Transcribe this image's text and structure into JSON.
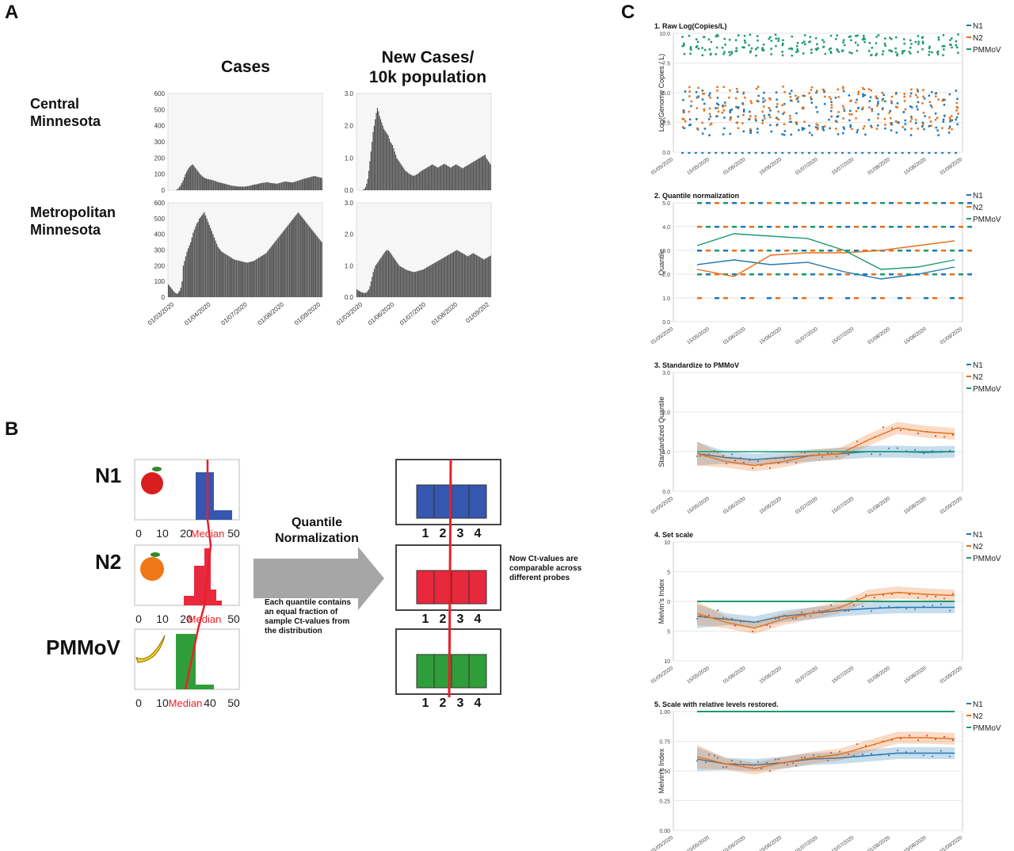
{
  "panels": {
    "a": "A",
    "b": "B",
    "c": "C"
  },
  "panel_a": {
    "col_headers": [
      "Cases",
      "New Cases/\n10k population"
    ],
    "row_labels": [
      "Central\nMinnesota",
      "Metropolitan\nMinnesota"
    ],
    "x_ticks": [
      "01/03/2020",
      "01/04/2020",
      "01/07/2020",
      "01/08/2020",
      "01/09/2020"
    ],
    "x_ticks_right": [
      "01/03/2020",
      "01/06/2020",
      "01/07/2020",
      "01/08/2020",
      "01/09/202"
    ]
  },
  "panel_b": {
    "names": [
      "N1",
      "N2",
      "PMMoV"
    ],
    "name_colors": [
      "#1f6fbf",
      "#e8202a",
      "#2eaa4a"
    ],
    "icons": [
      "apple-icon",
      "orange-icon",
      "banana-icon"
    ],
    "x_ticks": [
      [
        "0",
        "10",
        "20",
        "",
        "50"
      ],
      [
        "0",
        "10",
        "20",
        "",
        "50"
      ],
      [
        "0",
        "10",
        "",
        "40",
        "50"
      ]
    ],
    "median_label": "Median",
    "arrow_title": "Quantile\nNormalization",
    "arrow_caption": "Each quantile contains\nan equal fraction of\nsample Ct-values from\nthe distribution",
    "result_caption": "Now Ct-values are\ncomparable across\ndifferent probes",
    "quantile_labels": [
      "1",
      "2",
      "3",
      "4"
    ],
    "box_colors": [
      "#3557b0",
      "#e8283c",
      "#2f9e3a"
    ]
  },
  "panel_c": {
    "legend": [
      "N1",
      "N2",
      "PMMoV"
    ],
    "series_colors": {
      "N1": "#1f77b4",
      "N2": "#e8701a",
      "PMMoV": "#1a9a6c"
    },
    "dates": [
      "01/05/2020",
      "15/05/2020",
      "01/06/2020",
      "15/06/2020",
      "01/07/2020",
      "15/07/2020",
      "01/08/2020",
      "15/08/2020",
      "01/09/2020"
    ],
    "subplots": [
      {
        "title": "1. Raw Log(Copies/L)",
        "ylabel": "Log(Genome Copies / L)",
        "yticks": [
          "0.0",
          "2.5",
          "5.0",
          "7.5",
          "10.0"
        ]
      },
      {
        "title": "2. Quantile normalization",
        "ylabel": "Quantile",
        "yticks": [
          "0.0",
          "1.0",
          "2.0",
          "3.0",
          "4.0",
          "5.0"
        ]
      },
      {
        "title": "3. Standardize to PMMoV",
        "ylabel": "Standardized Quantile",
        "yticks": [
          "0.0",
          "1.0",
          "2.0",
          "3.0"
        ]
      },
      {
        "title": "4. Set scale",
        "ylabel": "Melvin's Index",
        "yticks": [
          "10",
          "5",
          "0",
          "5",
          "10"
        ]
      },
      {
        "title": "5. Scale with relative levels restored.",
        "ylabel": "Melvin's Index",
        "yticks": [
          "0.00",
          "0.25",
          "0.50",
          "0.75",
          "1.00"
        ]
      }
    ]
  },
  "chart_data": [
    {
      "type": "bar",
      "title": "Cases",
      "subtitle": "Central Minnesota",
      "ylim": [
        0,
        600
      ],
      "yticks": [
        0,
        100,
        200,
        300,
        400,
        500,
        600
      ],
      "values": [
        0,
        0,
        0,
        0,
        0,
        0,
        0,
        5,
        10,
        20,
        30,
        45,
        60,
        80,
        100,
        115,
        130,
        140,
        150,
        155,
        160,
        150,
        140,
        130,
        120,
        110,
        100,
        92,
        85,
        80,
        75,
        72,
        70,
        68,
        66,
        65,
        63,
        60,
        58,
        55,
        52,
        50,
        48,
        46,
        44,
        42,
        40,
        38,
        36,
        34,
        32,
        30,
        28,
        27,
        26,
        25,
        24,
        23,
        22,
        22,
        22,
        22,
        22,
        23,
        24,
        25,
        26,
        28,
        30,
        32,
        34,
        35,
        36,
        38,
        40,
        42,
        44,
        45,
        46,
        47,
        48,
        50,
        48,
        46,
        45,
        44,
        43,
        42,
        41,
        40,
        42,
        44,
        46,
        48,
        50,
        52,
        54,
        53,
        52,
        51,
        50,
        49,
        48,
        50,
        52,
        55,
        58,
        60,
        62,
        65,
        68,
        70,
        72,
        74,
        76,
        78,
        80,
        82,
        84,
        86,
        88,
        86,
        84,
        82,
        80,
        78,
        76
      ]
    },
    {
      "type": "bar",
      "title": "New Cases/ 10k population",
      "subtitle": "Central Minnesota",
      "ylim": [
        0,
        3.0
      ],
      "yticks": [
        0.0,
        1.0,
        2.0,
        3.0
      ],
      "values": [
        0,
        0,
        0,
        0,
        0,
        0,
        0.02,
        0.05,
        0.1,
        0.2,
        0.35,
        0.6,
        0.9,
        1.2,
        1.5,
        1.8,
        2.0,
        2.2,
        2.4,
        2.55,
        2.45,
        2.3,
        2.2,
        2.1,
        2.0,
        1.9,
        1.85,
        1.8,
        1.75,
        1.7,
        1.6,
        1.5,
        1.45,
        1.4,
        1.3,
        1.2,
        1.1,
        1.0,
        0.95,
        0.9,
        0.85,
        0.8,
        0.75,
        0.7,
        0.65,
        0.6,
        0.58,
        0.55,
        0.52,
        0.5,
        0.48,
        0.46,
        0.45,
        0.45,
        0.46,
        0.48,
        0.5,
        0.52,
        0.55,
        0.58,
        0.6,
        0.62,
        0.64,
        0.66,
        0.68,
        0.7,
        0.72,
        0.74,
        0.76,
        0.78,
        0.8,
        0.78,
        0.76,
        0.74,
        0.72,
        0.7,
        0.72,
        0.74,
        0.76,
        0.78,
        0.8,
        0.82,
        0.8,
        0.78,
        0.76,
        0.74,
        0.72,
        0.7,
        0.72,
        0.74,
        0.76,
        0.78,
        0.8,
        0.78,
        0.76,
        0.74,
        0.72,
        0.7,
        0.68,
        0.7,
        0.72,
        0.74,
        0.76,
        0.78,
        0.8,
        0.82,
        0.84,
        0.86,
        0.88,
        0.9,
        0.92,
        0.94,
        0.96,
        0.98,
        1.0,
        1.02,
        1.04,
        1.06,
        1.08,
        1.1,
        1.0,
        0.95,
        0.9,
        0.85,
        0.8
      ]
    },
    {
      "type": "bar",
      "title": "Cases",
      "subtitle": "Metropolitan Minnesota",
      "ylim": [
        0,
        600
      ],
      "yticks": [
        0,
        100,
        200,
        300,
        400,
        500,
        600
      ],
      "values": [
        80,
        70,
        60,
        50,
        40,
        30,
        25,
        20,
        30,
        40,
        60,
        100,
        200,
        230,
        260,
        290,
        310,
        330,
        350,
        380,
        410,
        430,
        450,
        470,
        480,
        500,
        510,
        520,
        530,
        540,
        520,
        500,
        480,
        460,
        440,
        420,
        400,
        380,
        360,
        340,
        320,
        310,
        300,
        290,
        285,
        280,
        275,
        270,
        265,
        260,
        255,
        250,
        245,
        240,
        238,
        236,
        234,
        232,
        230,
        228,
        226,
        224,
        222,
        220,
        220,
        222,
        224,
        226,
        228,
        230,
        235,
        240,
        245,
        250,
        255,
        260,
        265,
        270,
        275,
        280,
        290,
        300,
        310,
        320,
        330,
        340,
        350,
        360,
        370,
        380,
        390,
        400,
        410,
        420,
        430,
        440,
        450,
        460,
        470,
        480,
        490,
        500,
        510,
        520,
        530,
        540,
        530,
        520,
        510,
        500,
        490,
        480,
        470,
        460,
        450,
        440,
        430,
        420,
        410,
        400,
        390,
        380,
        370,
        360,
        350
      ]
    },
    {
      "type": "bar",
      "title": "New Cases/ 10k population",
      "subtitle": "Metropolitan Minnesota",
      "ylim": [
        0,
        3.0
      ],
      "yticks": [
        0.0,
        1.0,
        2.0,
        3.0
      ],
      "values": [
        0.25,
        0.22,
        0.2,
        0.18,
        0.16,
        0.15,
        0.14,
        0.13,
        0.14,
        0.16,
        0.2,
        0.25,
        0.35,
        0.5,
        0.65,
        0.8,
        0.9,
        1.0,
        1.05,
        1.1,
        1.15,
        1.2,
        1.25,
        1.3,
        1.35,
        1.4,
        1.45,
        1.48,
        1.5,
        1.48,
        1.45,
        1.4,
        1.35,
        1.3,
        1.25,
        1.2,
        1.15,
        1.1,
        1.05,
        1.0,
        0.98,
        0.96,
        0.94,
        0.92,
        0.9,
        0.88,
        0.86,
        0.85,
        0.84,
        0.83,
        0.82,
        0.81,
        0.8,
        0.8,
        0.81,
        0.82,
        0.83,
        0.84,
        0.85,
        0.86,
        0.87,
        0.88,
        0.9,
        0.92,
        0.94,
        0.96,
        0.98,
        1.0,
        1.02,
        1.04,
        1.06,
        1.08,
        1.1,
        1.12,
        1.14,
        1.16,
        1.18,
        1.2,
        1.22,
        1.24,
        1.26,
        1.28,
        1.3,
        1.32,
        1.34,
        1.36,
        1.38,
        1.4,
        1.42,
        1.44,
        1.46,
        1.48,
        1.5,
        1.48,
        1.46,
        1.44,
        1.42,
        1.4,
        1.38,
        1.36,
        1.34,
        1.32,
        1.3,
        1.32,
        1.34,
        1.36,
        1.38,
        1.4,
        1.38,
        1.36,
        1.34,
        1.32,
        1.3,
        1.28,
        1.26,
        1.24,
        1.22,
        1.2,
        1.22,
        1.24,
        1.26,
        1.28,
        1.3,
        1.32
      ]
    },
    {
      "type": "line",
      "title": "2. Quantile normalization",
      "ylim": [
        0,
        5
      ],
      "series": [
        {
          "name": "N1",
          "x": [
            "15/05/2020",
            "01/06/2020",
            "15/06/2020",
            "01/07/2020",
            "15/07/2020",
            "01/08/2020",
            "15/08/2020",
            "01/09/2020"
          ],
          "values": [
            2.4,
            2.6,
            2.4,
            2.5,
            2.1,
            1.8,
            2.0,
            2.3
          ]
        },
        {
          "name": "N2",
          "x": [
            "15/05/2020",
            "01/06/2020",
            "15/06/2020",
            "01/07/2020",
            "15/07/2020",
            "01/08/2020",
            "15/08/2020",
            "01/09/2020"
          ],
          "values": [
            2.2,
            1.9,
            2.8,
            2.9,
            2.9,
            3.0,
            3.2,
            3.4
          ]
        },
        {
          "name": "PMMoV",
          "x": [
            "15/05/2020",
            "01/06/2020",
            "15/06/2020",
            "01/07/2020",
            "15/07/2020",
            "01/08/2020",
            "15/08/2020",
            "01/09/2020"
          ],
          "values": [
            3.2,
            3.7,
            3.6,
            3.5,
            3.0,
            2.2,
            2.3,
            2.6
          ]
        }
      ]
    },
    {
      "type": "line",
      "title": "3. Standardize to PMMoV",
      "ylim": [
        0,
        3
      ],
      "series": [
        {
          "name": "N1",
          "values": [
            0.95,
            0.85,
            0.8,
            0.85,
            0.9,
            0.95,
            1.0,
            1.0,
            0.98,
            1.0
          ]
        },
        {
          "name": "N2",
          "values": [
            0.95,
            0.75,
            0.65,
            0.75,
            0.9,
            0.95,
            1.3,
            1.6,
            1.5,
            1.45
          ]
        },
        {
          "name": "PMMoV",
          "values": [
            1,
            1,
            1,
            1,
            1,
            1,
            1,
            1,
            1,
            1
          ]
        }
      ]
    },
    {
      "type": "line",
      "title": "4. Set scale",
      "ylim": [
        -10,
        10
      ],
      "series": [
        {
          "name": "N1",
          "values": [
            -2.5,
            -3.0,
            -3.5,
            -2.5,
            -2.0,
            -1.5,
            -1.2,
            -1.0,
            -1.0,
            -1.0
          ]
        },
        {
          "name": "N2",
          "values": [
            -2.0,
            -3.5,
            -4.5,
            -3.0,
            -2.0,
            -1.0,
            1.0,
            1.5,
            1.2,
            1.0
          ]
        },
        {
          "name": "PMMoV",
          "values": [
            0,
            0,
            0,
            0,
            0,
            0,
            0,
            0,
            0,
            0
          ]
        }
      ]
    },
    {
      "type": "line",
      "title": "5. Scale with relative levels restored.",
      "ylim": [
        0,
        1
      ],
      "series": [
        {
          "name": "N1",
          "values": [
            0.6,
            0.56,
            0.55,
            0.57,
            0.6,
            0.61,
            0.63,
            0.65,
            0.65,
            0.65
          ]
        },
        {
          "name": "N2",
          "values": [
            0.62,
            0.56,
            0.52,
            0.57,
            0.61,
            0.64,
            0.71,
            0.78,
            0.78,
            0.77
          ]
        },
        {
          "name": "PMMoV",
          "values": [
            1,
            1,
            1,
            1,
            1,
            1,
            1,
            1,
            1,
            1
          ]
        }
      ]
    }
  ]
}
